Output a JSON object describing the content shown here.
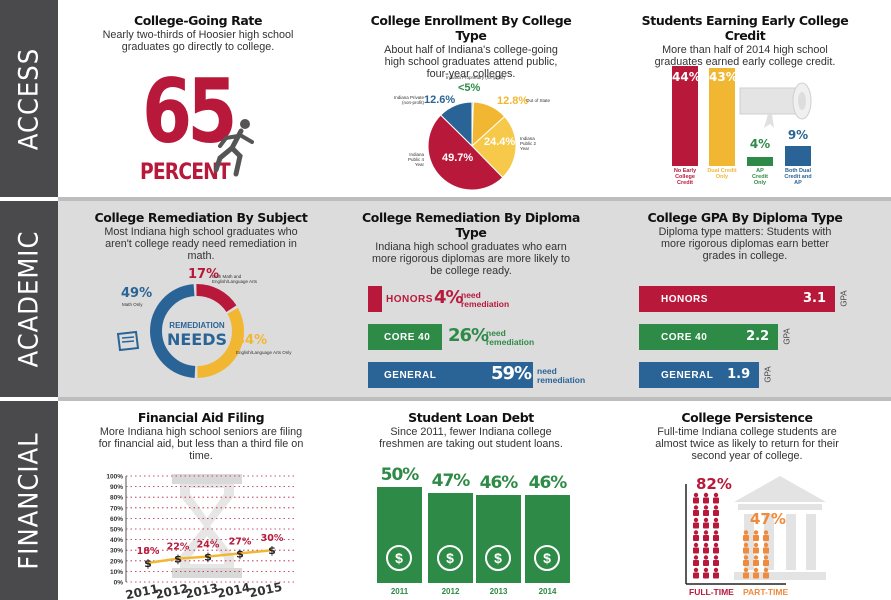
{
  "sections": {
    "access": "ACCESS",
    "academic": "ACADEMIC",
    "financial": "FINANCIAL"
  },
  "going_rate": {
    "title": "College-Going Rate",
    "desc": "Nearly two-thirds of Hoosier high school graduates go directly to college.",
    "big_number": "65",
    "big_label": "PERCENT"
  },
  "enrollment": {
    "title": "College Enrollment By College Type",
    "desc": "About half of Indiana's college-going high school graduates attend public, four-year colleges.",
    "slices": [
      {
        "label": "Indiana Public 4 Year",
        "pct": "49.7%",
        "value": 49.7,
        "color": "#b8193b"
      },
      {
        "label": "Indiana Private (non-profit)",
        "pct": "12.6%",
        "value": 12.6,
        "color": "#2a6496"
      },
      {
        "label": "Indiana Proprietary (for-profit)",
        "pct": "<5%",
        "value": 0.5,
        "color": "#2e8b47"
      },
      {
        "label": "Out of State",
        "pct": "12.8%",
        "value": 12.8,
        "color": "#f2b732"
      },
      {
        "label": "Indiana Public 2 Year",
        "pct": "24.4%",
        "value": 24.4,
        "color": "#f6c94a"
      }
    ]
  },
  "early_credit": {
    "title": "Students Earning Early College Credit",
    "desc": "More than half of 2014 high school graduates earned early college credit.",
    "bars": [
      {
        "pct": "44%",
        "value": 44,
        "label": "No Early College Credit",
        "color": "#b8193b"
      },
      {
        "pct": "43%",
        "value": 43,
        "label": "Dual Credit Only",
        "color": "#f2b732"
      },
      {
        "pct": "4%",
        "value": 4,
        "label": "AP Credit Only",
        "color": "#2e8b47"
      },
      {
        "pct": "9%",
        "value": 9,
        "label": "Both Dual Credit and AP",
        "color": "#2a6496"
      }
    ]
  },
  "remediation_subject": {
    "title": "College Remediation By Subject",
    "desc": "Most Indiana high school graduates who aren't college ready need remediation in math.",
    "center_line1": "REMEDIATION",
    "center_line2": "NEEDS",
    "segments": [
      {
        "pct": "49%",
        "label": "Math Only",
        "value": 49,
        "color": "#2a6496"
      },
      {
        "pct": "17%",
        "label": "Both Math and English/Language Arts",
        "value": 17,
        "color": "#b8193b"
      },
      {
        "pct": "34%",
        "label": "English/Language Arts Only",
        "value": 34,
        "color": "#f2b732"
      }
    ]
  },
  "remediation_diploma": {
    "title": "College Remediation By Diploma Type",
    "desc": "Indiana high school graduates who earn more rigorous diplomas are more likely to be college ready.",
    "need_text": "need remediation",
    "rows": [
      {
        "label": "HONORS",
        "pct": "4%",
        "value": 4,
        "color": "#b8193b"
      },
      {
        "label": "CORE 40",
        "pct": "26%",
        "value": 26,
        "color": "#2e8b47"
      },
      {
        "label": "GENERAL",
        "pct": "59%",
        "value": 59,
        "color": "#2a6496"
      }
    ]
  },
  "gpa_diploma": {
    "title": "College GPA By Diploma Type",
    "desc": "Diploma type matters: Students with more rigorous diplomas earn better grades in college.",
    "unit": "GPA",
    "rows": [
      {
        "label": "HONORS",
        "gpa": "3.1",
        "value": 3.1,
        "color": "#b8193b"
      },
      {
        "label": "CORE 40",
        "gpa": "2.2",
        "value": 2.2,
        "color": "#2e8b47"
      },
      {
        "label": "GENERAL",
        "gpa": "1.9",
        "value": 1.9,
        "color": "#2a6496"
      }
    ]
  },
  "aid_filing": {
    "title": "Financial Aid Filing",
    "desc": "More Indiana high school seniors are filing for financial aid, but less than a third file on time.",
    "y_ticks": [
      "100%",
      "90%",
      "80%",
      "70%",
      "60%",
      "50%",
      "40%",
      "30%",
      "20%",
      "10%",
      "0%"
    ],
    "years": [
      "2011",
      "2012",
      "2013",
      "2014",
      "2015"
    ],
    "values": [
      18,
      22,
      24,
      27,
      30
    ],
    "labels": [
      "18%",
      "22%",
      "24%",
      "27%",
      "30%"
    ]
  },
  "loan_debt": {
    "title": "Student Loan Debt",
    "desc": "Since 2011, fewer Indiana college freshmen are taking out student loans.",
    "bars": [
      {
        "year": "2011",
        "pct": "50%",
        "value": 50
      },
      {
        "year": "2012",
        "pct": "47%",
        "value": 47
      },
      {
        "year": "2013",
        "pct": "46%",
        "value": 46
      },
      {
        "year": "2014",
        "pct": "46%",
        "value": 46
      }
    ]
  },
  "persistence": {
    "title": "College Persistence",
    "desc": "Full-time Indiana college students are almost twice as likely to return for their second year of college.",
    "full_time": {
      "pct": "82%",
      "value": 82,
      "label": "FULL-TIME"
    },
    "part_time": {
      "pct": "47%",
      "value": 47,
      "label": "PART-TIME"
    }
  }
}
